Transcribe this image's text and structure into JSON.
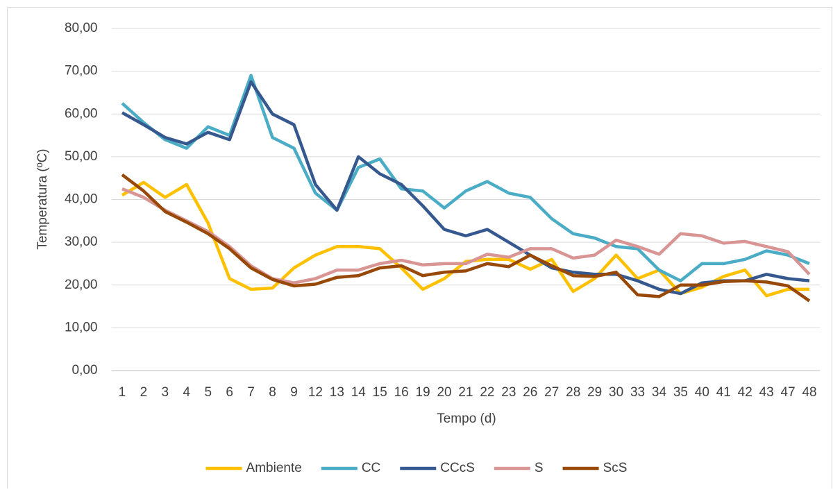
{
  "chart_data": {
    "type": "line",
    "x_label": "Tempo (d)",
    "y_label": "Temperatura (ºC)",
    "categories": [
      "1",
      "2",
      "3",
      "4",
      "5",
      "6",
      "7",
      "8",
      "9",
      "12",
      "13",
      "14",
      "15",
      "16",
      "19",
      "20",
      "21",
      "22",
      "23",
      "26",
      "27",
      "28",
      "29",
      "30",
      "33",
      "34",
      "35",
      "40",
      "41",
      "42",
      "43",
      "47",
      "48"
    ],
    "series": [
      {
        "name": "Ambiente",
        "color": "#ffc000",
        "values": [
          41,
          44,
          40.5,
          43.5,
          34.5,
          21.5,
          19,
          19.3,
          24,
          27,
          29,
          29,
          28.5,
          24,
          19,
          21.5,
          25.5,
          26,
          26,
          23.7,
          26,
          18.5,
          21.5,
          27,
          21.5,
          23.5,
          18,
          19.5,
          22,
          23.5,
          17.5,
          19,
          19
        ]
      },
      {
        "name": "CC",
        "color": "#4bacc6",
        "values": [
          62.5,
          58,
          54,
          52,
          57,
          55,
          69,
          54.5,
          52,
          41.5,
          37.5,
          47.5,
          49.5,
          42.5,
          42,
          38,
          42,
          44.2,
          41.5,
          40.5,
          35.5,
          32,
          31,
          29,
          28.5,
          23.5,
          21,
          25,
          25,
          26,
          28,
          27,
          25
        ]
      },
      {
        "name": "CCcS",
        "color": "#35598f",
        "values": [
          60.3,
          57.5,
          54.5,
          53,
          55.7,
          54,
          67.5,
          60,
          57.5,
          43.5,
          37.5,
          50,
          46,
          43.5,
          38.5,
          33,
          31.5,
          33,
          30,
          27,
          24,
          23,
          22.5,
          22.5,
          21,
          19,
          18,
          20.5,
          21,
          21,
          22.5,
          21.5,
          21
        ]
      },
      {
        "name": "S",
        "color": "#d99594",
        "values": [
          42.5,
          40.5,
          37.5,
          35,
          32.5,
          29,
          24.5,
          21.5,
          20.5,
          21.5,
          23.5,
          23.5,
          25,
          25.8,
          24.7,
          25,
          25,
          27.2,
          26.5,
          28.5,
          28.5,
          26.3,
          27,
          30.5,
          29,
          27.2,
          32,
          31.5,
          29.8,
          30.2,
          29,
          27.8,
          22.5
        ]
      },
      {
        "name": "ScS",
        "color": "#984807",
        "values": [
          45.8,
          42,
          37.2,
          34.7,
          32,
          28.5,
          24,
          21.3,
          19.8,
          20.2,
          21.8,
          22.2,
          24,
          24.5,
          22.2,
          23,
          23.3,
          25,
          24.3,
          27,
          24.5,
          22.2,
          22,
          23,
          17.7,
          17.3,
          20,
          20,
          20.8,
          21,
          20.7,
          19.8,
          16.3
        ]
      }
    ],
    "ylim": [
      0,
      80
    ],
    "yticks": [
      {
        "value": 0,
        "label": "0,00"
      },
      {
        "value": 10,
        "label": "10,00"
      },
      {
        "value": 20,
        "label": "20,00"
      },
      {
        "value": 30,
        "label": "30,00"
      },
      {
        "value": 40,
        "label": "40,00"
      },
      {
        "value": 50,
        "label": "50,00"
      },
      {
        "value": 60,
        "label": "60,00"
      },
      {
        "value": 70,
        "label": "70,00"
      },
      {
        "value": 80,
        "label": "80,00"
      }
    ],
    "grid": true,
    "legend": "bottom"
  }
}
